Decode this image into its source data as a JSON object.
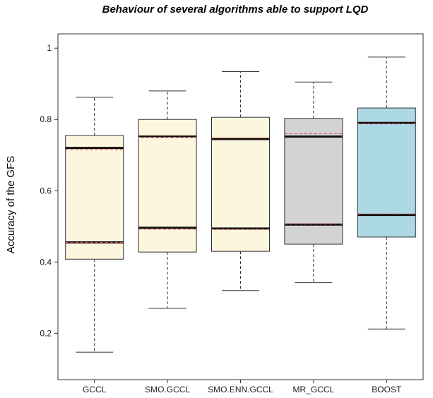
{
  "chart_data": {
    "type": "boxplot",
    "title": "Behaviour of several algorithms able to support LQD",
    "xlabel": "",
    "ylabel": "Accuracy of the GFS",
    "ylim": [
      0.07,
      1.04
    ],
    "yticks": [
      0.2,
      0.4,
      0.6,
      0.8,
      1
    ],
    "ytick_labels": [
      "0.2",
      "0.4",
      "0.6",
      "0.8",
      "1"
    ],
    "grid": false,
    "legend": "none",
    "categories": [
      "GCCL",
      "SMO.GCCL",
      "SMO.ENN.GCCL",
      "MR_GCCL",
      "BOOST"
    ],
    "boxes": [
      {
        "name": "GCCL",
        "whisker_low": 0.147,
        "q1": 0.408,
        "q3": 0.755,
        "whisker_high": 0.862,
        "bold_lines": [
          0.455,
          0.72
        ],
        "dashed_lines": [
          0.455,
          0.715
        ],
        "fill": "#fdf6df"
      },
      {
        "name": "SMO.GCCL",
        "whisker_low": 0.27,
        "q1": 0.428,
        "q3": 0.8,
        "whisker_high": 0.88,
        "bold_lines": [
          0.496,
          0.752
        ],
        "dashed_lines": [
          0.492,
          0.75
        ],
        "fill": "#fdf6df"
      },
      {
        "name": "SMO.ENN.GCCL",
        "whisker_low": 0.32,
        "q1": 0.43,
        "q3": 0.806,
        "whisker_high": 0.934,
        "bold_lines": [
          0.494,
          0.745
        ],
        "dashed_lines": [
          0.492,
          0.748
        ],
        "fill": "#fdf6df"
      },
      {
        "name": "MR_GCCL",
        "whisker_low": 0.342,
        "q1": 0.45,
        "q3": 0.803,
        "whisker_high": 0.905,
        "bold_lines": [
          0.505,
          0.752
        ],
        "dashed_lines": [
          0.507,
          0.76
        ],
        "fill": "#d3d3d3"
      },
      {
        "name": "BOOST",
        "whisker_low": 0.212,
        "q1": 0.47,
        "q3": 0.832,
        "whisker_high": 0.975,
        "bold_lines": [
          0.532,
          0.79
        ],
        "dashed_lines": [
          0.535,
          0.788
        ],
        "fill": "#add8e6"
      }
    ],
    "colors": {
      "bold_line": "#111111",
      "dashed_line": "#e0505a",
      "box_stroke": "#333333",
      "whisker": "#333333",
      "panel_border": "#333333"
    }
  }
}
